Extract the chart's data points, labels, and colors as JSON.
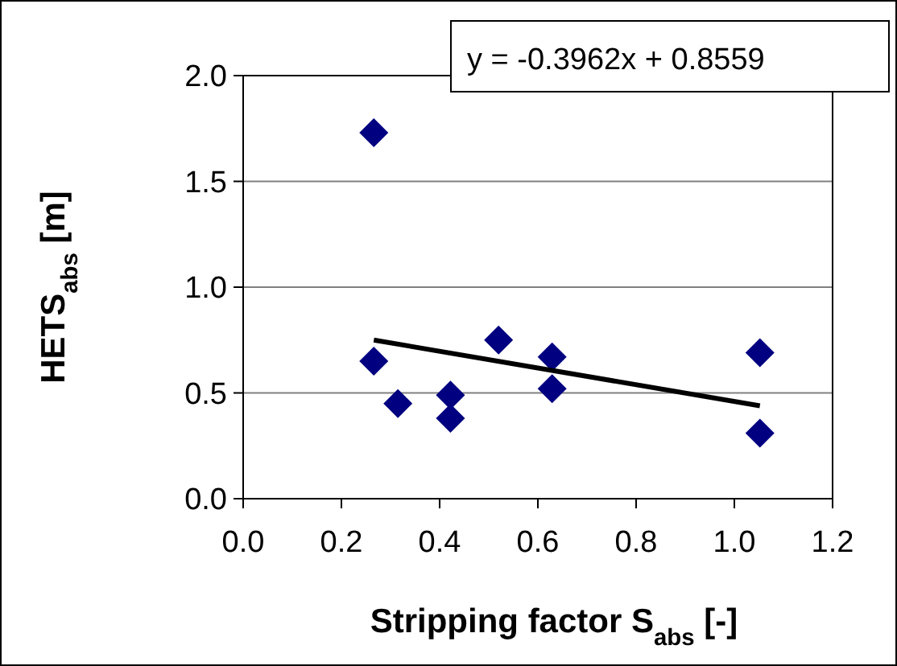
{
  "chart_data": {
    "type": "scatter",
    "xlabel": "Stripping factor S$_{abs}$ [-]",
    "ylabel": "HETS$_{abs}$ [m]",
    "xlim": [
      0,
      1.2
    ],
    "xticks": [
      {
        "value": 0,
        "label": "0.0"
      },
      {
        "value": 0.2,
        "label": "0.2"
      },
      {
        "value": 0.4,
        "label": "0.4"
      },
      {
        "value": 0.6,
        "label": "0.6"
      },
      {
        "value": 0.8,
        "label": "0.8"
      },
      {
        "value": 1,
        "label": "1.0"
      },
      {
        "value": 1.2,
        "label": "1.2"
      }
    ],
    "ylim": [
      0,
      2
    ],
    "yticks": [
      {
        "value": 0,
        "label": "0.0"
      },
      {
        "value": 0.5,
        "label": "0.5"
      },
      {
        "value": 1,
        "label": "1.0"
      },
      {
        "value": 1.5,
        "label": "1.5"
      },
      {
        "value": 2,
        "label": "2.0"
      }
    ],
    "grid": "y",
    "marker": "diamond",
    "series": [
      {
        "color": "#000080",
        "x": [
          0.266,
          0.266,
          0.315,
          0.422,
          0.422,
          0.52,
          0.629,
          0.629,
          1.052,
          1.052
        ],
        "values": [
          1.73,
          0.65,
          0.45,
          0.49,
          0.38,
          0.75,
          0.67,
          0.52,
          0.69,
          0.31
        ]
      },
      {
        "type": "line",
        "color": "#000000",
        "line_style": "solid",
        "marker": "none",
        "x": [
          0.266,
          1.052
        ],
        "values": [
          0.75,
          0.439
        ]
      }
    ],
    "annotations": [
      "y = -0.3962x + 0.8559"
    ]
  }
}
